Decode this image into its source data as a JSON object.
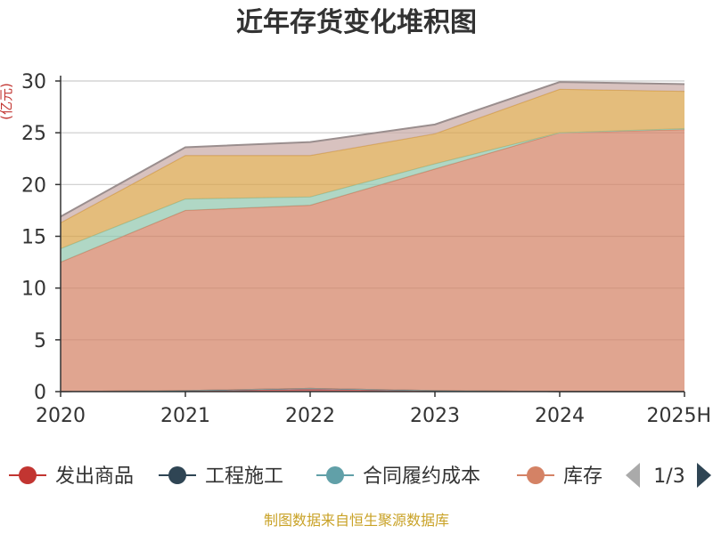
{
  "chart_data": {
    "type": "area",
    "stacked": true,
    "title": "近年存货变化堆积图",
    "ylabel": "(亿元)",
    "xlabel": "",
    "categories": [
      "2020",
      "2021",
      "2022",
      "2023",
      "2024",
      "2025H"
    ],
    "ylim": [
      0,
      30
    ],
    "yticks": [
      0,
      5,
      10,
      15,
      20,
      25,
      30
    ],
    "grid": true,
    "series": [
      {
        "name": "发出商品",
        "values": [
          0.0,
          0.1,
          0.3,
          0.1,
          0.0,
          0.0
        ],
        "color": "#c23531"
      },
      {
        "name": "工程施工",
        "values": [
          0.0,
          0.0,
          0.0,
          0.0,
          0.0,
          0.0
        ],
        "color": "#2f4554"
      },
      {
        "name": "合同履约成本",
        "values": [
          0.0,
          0.0,
          0.0,
          0.0,
          0.0,
          0.0
        ],
        "color": "#61a0a8"
      },
      {
        "name": "库存",
        "values": [
          12.5,
          17.4,
          17.7,
          21.4,
          25.0,
          25.3
        ],
        "color": "#d48265"
      },
      {
        "name": "",
        "values": [
          1.3,
          1.1,
          0.8,
          0.5,
          0.0,
          0.1
        ],
        "color": "#91c7ae"
      },
      {
        "name": "",
        "values": [
          2.5,
          4.2,
          4.0,
          2.9,
          4.2,
          3.6
        ],
        "color": "#d9a44a"
      },
      {
        "name": "",
        "values": [
          0.6,
          0.8,
          1.3,
          0.9,
          0.7,
          0.7
        ],
        "color": "#c9aaa6"
      }
    ]
  },
  "legend": {
    "page": "1/3",
    "prev_icon": "triangle-left-icon",
    "next_icon": "triangle-right-icon"
  },
  "source": "制图数据来自恒生聚源数据库"
}
